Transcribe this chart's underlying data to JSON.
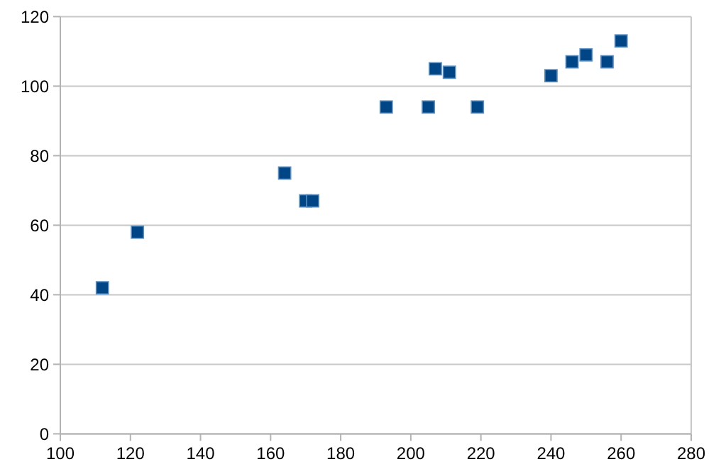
{
  "chart_data": {
    "type": "scatter",
    "x": [
      112,
      122,
      164,
      170,
      172,
      193,
      205,
      207,
      211,
      219,
      240,
      246,
      250,
      256,
      260
    ],
    "values": [
      42,
      58,
      75,
      67,
      67,
      94,
      94,
      105,
      104,
      94,
      103,
      107,
      109,
      107,
      113
    ],
    "color": "#004586",
    "marker": "square",
    "grid": "y",
    "xlim": [
      100,
      280
    ],
    "xticks": [
      100,
      120,
      140,
      160,
      180,
      200,
      220,
      240,
      260,
      280
    ],
    "ylim": [
      0,
      120
    ],
    "yticks": [
      0,
      20,
      40,
      60,
      80,
      100,
      120
    ]
  }
}
